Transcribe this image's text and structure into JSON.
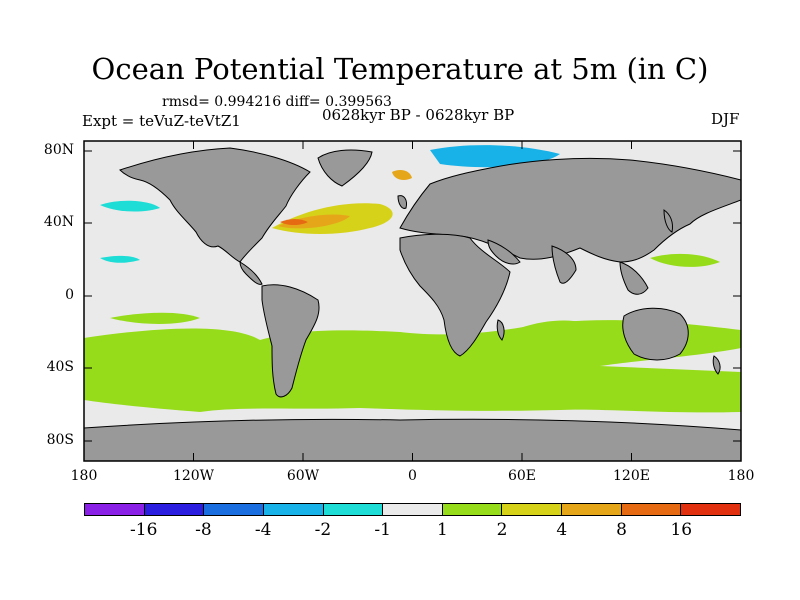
{
  "title": "Ocean Potential Temperature at 5m (in C)",
  "stats": "rmsd= 0.994216 diff= 0.399563",
  "expt": "Expt = teVuZ-teVtZ1",
  "period": "0628kyr BP - 0628kyr BP",
  "season": "DJF",
  "y_ticks": [
    "80N",
    "40N",
    "0",
    "40S",
    "80S"
  ],
  "x_ticks": [
    "180",
    "120W",
    "60W",
    "0",
    "60E",
    "120E",
    "180"
  ],
  "colorbar": {
    "colors": [
      "#8a1fe6",
      "#2b1ee0",
      "#1a6ee0",
      "#19b2e8",
      "#1edcd6",
      "#eaeaea",
      "#96dc1a",
      "#d6d21a",
      "#e6a61a",
      "#e66a12",
      "#e0300f"
    ],
    "labels": [
      "-16",
      "-8",
      "-4",
      "-2",
      "-1",
      "1",
      "2",
      "4",
      "8",
      "16"
    ]
  },
  "map_colors": {
    "land": "#999999",
    "ocean_background": "#eaeaea",
    "coastline": "#000000"
  }
}
